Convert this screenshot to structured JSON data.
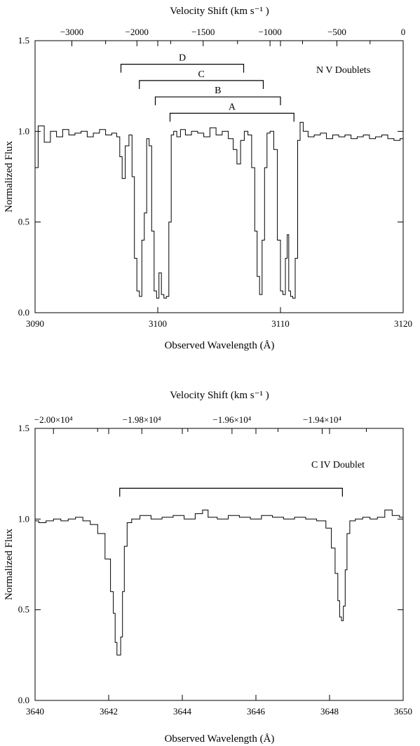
{
  "chart_data": [
    {
      "type": "line",
      "name": "nv-panel",
      "top_axis_title": "Velocity Shift (km s⁻¹ )",
      "xlabel": "Observed Wavelength (Å)",
      "ylabel": "Normalized Flux",
      "xlim": [
        3090,
        3120
      ],
      "ylim": [
        0,
        1.5
      ],
      "x_ticks": [
        3090,
        3100,
        3110,
        3120
      ],
      "x_tick_labels": [
        "3090",
        "3100",
        "3110",
        "3120"
      ],
      "y_ticks": [
        0,
        0.5,
        1.0,
        1.5
      ],
      "y_tick_labels": [
        "0.0",
        "0.5",
        "1.0",
        "1.5"
      ],
      "top_ticks": [
        3093.0,
        3095.75,
        3098.3,
        3101.05,
        3103.7,
        3106.5,
        3109.15,
        3111.8,
        3114.6,
        3117.3,
        3120.0
      ],
      "top_tick_labels": [
        "−3000",
        "",
        "−2000",
        "",
        "−1500",
        "",
        "−1000",
        "",
        "−500",
        "",
        "0"
      ],
      "annotation": "N V Doublets",
      "doublets": [
        {
          "label": "D",
          "x1": 3097.0,
          "x2": 3107.0,
          "y": 1.37
        },
        {
          "label": "C",
          "x1": 3098.5,
          "x2": 3108.6,
          "y": 1.28
        },
        {
          "label": "B",
          "x1": 3099.8,
          "x2": 3110.0,
          "y": 1.19
        },
        {
          "label": "A",
          "x1": 3101.0,
          "x2": 3111.1,
          "y": 1.1
        }
      ],
      "spectrum": {
        "x": [
          3090.0,
          3090.5,
          3091.0,
          3091.5,
          3092.0,
          3092.5,
          3093.0,
          3093.5,
          3094.0,
          3094.5,
          3095.0,
          3095.5,
          3096.0,
          3096.5,
          3096.8,
          3097.0,
          3097.2,
          3097.5,
          3097.8,
          3098.0,
          3098.2,
          3098.4,
          3098.6,
          3098.8,
          3099.0,
          3099.2,
          3099.4,
          3099.6,
          3099.8,
          3100.0,
          3100.2,
          3100.4,
          3100.6,
          3100.8,
          3101.0,
          3101.2,
          3101.4,
          3101.7,
          3102.0,
          3102.5,
          3103.0,
          3103.5,
          3104.0,
          3104.5,
          3105.0,
          3105.5,
          3106.0,
          3106.3,
          3106.6,
          3106.9,
          3107.2,
          3107.5,
          3107.8,
          3108.0,
          3108.2,
          3108.4,
          3108.6,
          3108.8,
          3109.0,
          3109.3,
          3109.6,
          3109.9,
          3110.1,
          3110.3,
          3110.5,
          3110.6,
          3110.75,
          3110.9,
          3111.1,
          3111.3,
          3111.5,
          3111.7,
          3112.0,
          3112.5,
          3113.0,
          3113.5,
          3114.0,
          3114.5,
          3115.0,
          3115.5,
          3116.0,
          3116.5,
          3117.0,
          3117.5,
          3118.0,
          3118.5,
          3119.0,
          3119.5,
          3120.0
        ],
        "y": [
          0.8,
          1.03,
          0.94,
          1.0,
          0.97,
          1.01,
          0.98,
          0.99,
          1.0,
          0.97,
          0.99,
          1.01,
          0.98,
          0.99,
          0.97,
          0.86,
          0.74,
          0.92,
          0.98,
          0.75,
          0.3,
          0.12,
          0.09,
          0.4,
          0.55,
          0.96,
          0.92,
          0.45,
          0.12,
          0.08,
          0.22,
          0.1,
          0.08,
          0.09,
          0.5,
          0.98,
          1.0,
          0.97,
          1.01,
          0.98,
          1.0,
          0.99,
          0.97,
          1.02,
          0.98,
          1.0,
          0.96,
          0.9,
          0.82,
          0.95,
          1.0,
          0.98,
          0.8,
          0.45,
          0.2,
          0.1,
          0.4,
          0.8,
          0.99,
          1.0,
          0.9,
          0.4,
          0.12,
          0.1,
          0.3,
          0.43,
          0.12,
          0.09,
          0.08,
          0.3,
          0.95,
          1.05,
          1.0,
          0.97,
          0.98,
          0.99,
          0.96,
          0.98,
          0.97,
          0.98,
          0.96,
          0.97,
          0.98,
          0.96,
          0.97,
          0.98,
          0.96,
          0.95,
          0.96
        ]
      }
    },
    {
      "type": "line",
      "name": "civ-panel",
      "top_axis_title": "Velocity Shift (km s⁻¹ )",
      "xlabel": "Observed Wavelength (Å)",
      "ylabel": "Normalized Flux",
      "xlim": [
        3640,
        3650
      ],
      "ylim": [
        0,
        1.5
      ],
      "x_ticks": [
        3640,
        3642,
        3644,
        3646,
        3648,
        3650
      ],
      "x_tick_labels": [
        "3640",
        "3642",
        "3644",
        "3646",
        "3648",
        "3650"
      ],
      "y_ticks": [
        0,
        0.5,
        1.0,
        1.5
      ],
      "y_tick_labels": [
        "0.0",
        "0.5",
        "1.0",
        "1.5"
      ],
      "top_ticks": [
        3640.5,
        3641.7,
        3642.9,
        3644.15,
        3645.35,
        3646.6,
        3647.8,
        3649.0
      ],
      "top_tick_labels": [
        "−2.00×10⁴",
        "",
        "−1.98×10⁴",
        "",
        "−1.96×10⁴",
        "",
        "−1.94×10⁴",
        ""
      ],
      "annotation": "C IV Doublet",
      "doublets": [
        {
          "label": "",
          "x1": 3642.3,
          "x2": 3648.35,
          "y": 1.17
        }
      ],
      "spectrum": {
        "x": [
          3640.0,
          3640.2,
          3640.4,
          3640.6,
          3640.8,
          3641.0,
          3641.2,
          3641.4,
          3641.6,
          3641.8,
          3642.0,
          3642.1,
          3642.15,
          3642.2,
          3642.25,
          3642.3,
          3642.35,
          3642.4,
          3642.45,
          3642.55,
          3642.7,
          3643.0,
          3643.3,
          3643.6,
          3643.9,
          3644.2,
          3644.5,
          3644.6,
          3644.8,
          3645.1,
          3645.4,
          3645.7,
          3646.0,
          3646.3,
          3646.6,
          3646.9,
          3647.2,
          3647.5,
          3647.8,
          3648.0,
          3648.1,
          3648.2,
          3648.25,
          3648.3,
          3648.35,
          3648.4,
          3648.45,
          3648.5,
          3648.6,
          3648.8,
          3649.0,
          3649.2,
          3649.4,
          3649.6,
          3649.8,
          3650.0
        ],
        "y": [
          0.99,
          0.98,
          0.99,
          1.0,
          0.99,
          1.0,
          1.01,
          0.99,
          0.97,
          0.92,
          0.78,
          0.6,
          0.48,
          0.32,
          0.25,
          0.25,
          0.35,
          0.6,
          0.85,
          0.98,
          1.0,
          1.02,
          1.0,
          1.01,
          1.02,
          1.0,
          1.03,
          1.05,
          1.01,
          1.0,
          1.02,
          1.01,
          1.0,
          1.02,
          1.01,
          1.0,
          1.01,
          1.0,
          0.99,
          0.95,
          0.84,
          0.7,
          0.55,
          0.46,
          0.44,
          0.52,
          0.72,
          0.92,
          0.99,
          1.0,
          1.01,
          1.0,
          1.01,
          1.05,
          1.02,
          1.01
        ]
      }
    }
  ]
}
